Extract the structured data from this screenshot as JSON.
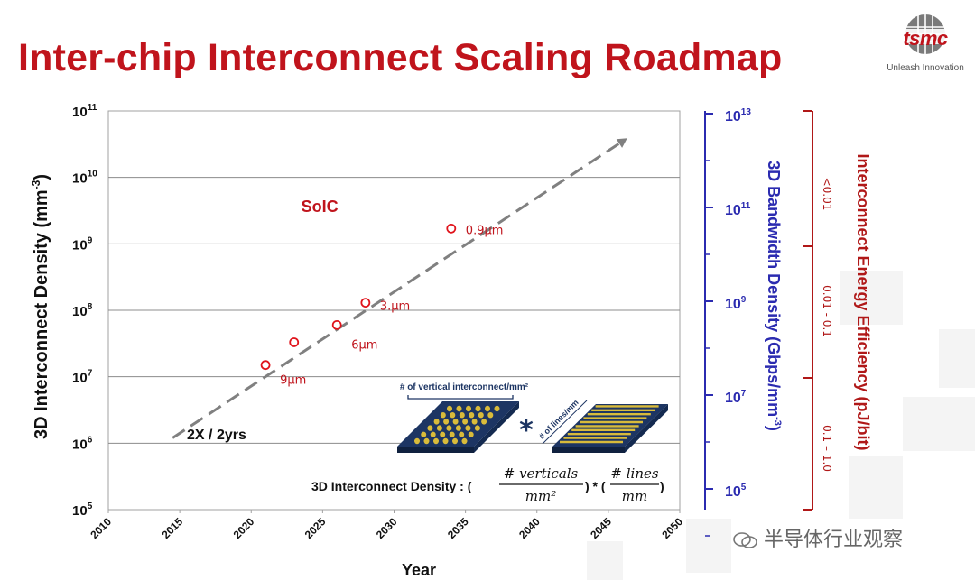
{
  "header": {
    "title": "Inter-chip Interconnect Scaling Roadmap",
    "logo_text": "tsmc",
    "logo_tagline": "Unleash Innovation"
  },
  "watermark": {
    "icon": "wechat-icon",
    "text": "半导体行业观察"
  },
  "colors": {
    "title": "#c0141c",
    "trend_line": "#808080",
    "markers": "#e0141c",
    "bandwidth_axis": "#2b2bb0",
    "energy_axis": "#b01818",
    "chip": "#1d3563",
    "bump": "#d9bb3a"
  },
  "chart_data": {
    "type": "scatter",
    "xlabel": "Year",
    "ylabel": "3D Interconnect Density (mm",
    "ylabel_sup": "-3",
    "ylabel_close": ")",
    "xlim": [
      2010,
      2050
    ],
    "x_ticks": [
      "2010",
      "2015",
      "2020",
      "2025",
      "2030",
      "2035",
      "2040",
      "2045",
      "2050"
    ],
    "y_scale": "log",
    "ylim": [
      100000,
      100000000000
    ],
    "y_ticks": [
      {
        "base": "10",
        "exp": "5"
      },
      {
        "base": "10",
        "exp": "6"
      },
      {
        "base": "10",
        "exp": "7"
      },
      {
        "base": "10",
        "exp": "8"
      },
      {
        "base": "10",
        "exp": "9"
      },
      {
        "base": "10",
        "exp": "10"
      },
      {
        "base": "10",
        "exp": "11"
      }
    ],
    "grid": "horizontal",
    "series": [
      {
        "name": "SoIC",
        "points": [
          {
            "x": 2021,
            "y": 15000000,
            "label": "9μm"
          },
          {
            "x": 2023,
            "y": 33000000,
            "label": ""
          },
          {
            "x": 2026,
            "y": 60000000,
            "label": "6μm"
          },
          {
            "x": 2028,
            "y": 130000000,
            "label": "3.μm"
          },
          {
            "x": 2034,
            "y": 1700000000,
            "label": "0.9μm"
          }
        ]
      }
    ],
    "trend": {
      "label": "2X / 2yrs",
      "from": {
        "x": 2014.5,
        "y": 1200000
      },
      "to": {
        "x": 2046,
        "y": 35000000000
      }
    },
    "series_label": "SoIC",
    "right_axis_1": {
      "label": "3D Bandwidth Density (Gbps/mm",
      "label_sup": "-3",
      "label_close": ")",
      "ticks": [
        {
          "base": "10",
          "exp": "13"
        },
        {
          "base": "10",
          "exp": "11"
        },
        {
          "base": "10",
          "exp": "9"
        },
        {
          "base": "10",
          "exp": "7"
        },
        {
          "base": "10",
          "exp": "5"
        }
      ]
    },
    "right_axis_2": {
      "label": "Interconnect Energy Efficiency (pJ/bit)",
      "ticks": [
        "<0.01",
        "0.01 - 0.1",
        "0.1 – 1.0"
      ]
    },
    "inset": {
      "vertical_label": "# of vertical interconnect/mm²",
      "lines_label": "# of lines/mm",
      "multiply": "*",
      "formula_prefix": "3D Interconnect Density : (",
      "formula_num1": "# verticals",
      "formula_den1": "mm²",
      "formula_mid": ") * (",
      "formula_num2": "# lines",
      "formula_den2": "mm",
      "formula_close": ")"
    }
  }
}
